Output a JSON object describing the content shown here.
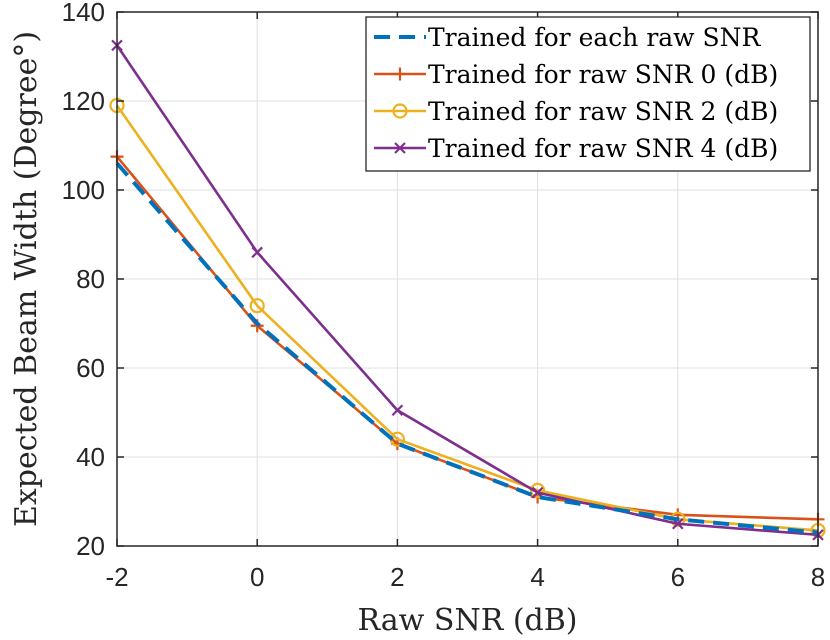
{
  "chart_data": {
    "type": "line",
    "title": "",
    "xlabel": "Raw SNR (dB)",
    "ylabel": "Expected Beam Width (Degree°)",
    "xlim": [
      -2,
      8
    ],
    "ylim": [
      20,
      140
    ],
    "xticks": [
      -2,
      0,
      2,
      4,
      6,
      8
    ],
    "xtick_labels": [
      "-2",
      "0",
      "2",
      "4",
      "6",
      "8"
    ],
    "yticks": [
      20,
      40,
      60,
      80,
      100,
      120,
      140
    ],
    "ytick_labels": [
      "20",
      "40",
      "60",
      "80",
      "100",
      "120",
      "140"
    ],
    "grid": true,
    "legend_position": "top-right",
    "x": [
      -2,
      0,
      2,
      4,
      6,
      8
    ],
    "series": [
      {
        "name": "Trained for each raw SNR",
        "color": "#0072BD",
        "dash": "dashed",
        "marker": "none",
        "values": [
          106,
          70,
          43,
          31,
          26,
          23
        ]
      },
      {
        "name": "Trained for raw SNR 0 (dB)",
        "color": "#D95319",
        "dash": "solid",
        "marker": "plus",
        "values": [
          107.5,
          69.5,
          43,
          31,
          27,
          26
        ]
      },
      {
        "name": "Trained for raw SNR 2 (dB)",
        "color": "#EDB120",
        "dash": "solid",
        "marker": "circle",
        "values": [
          119,
          74,
          44,
          32.5,
          26,
          23.5
        ]
      },
      {
        "name": "Trained for raw SNR 4 (dB)",
        "color": "#7E2F8E",
        "dash": "solid",
        "marker": "cross",
        "values": [
          132.5,
          86,
          50.5,
          32,
          25,
          22.5
        ]
      }
    ]
  }
}
